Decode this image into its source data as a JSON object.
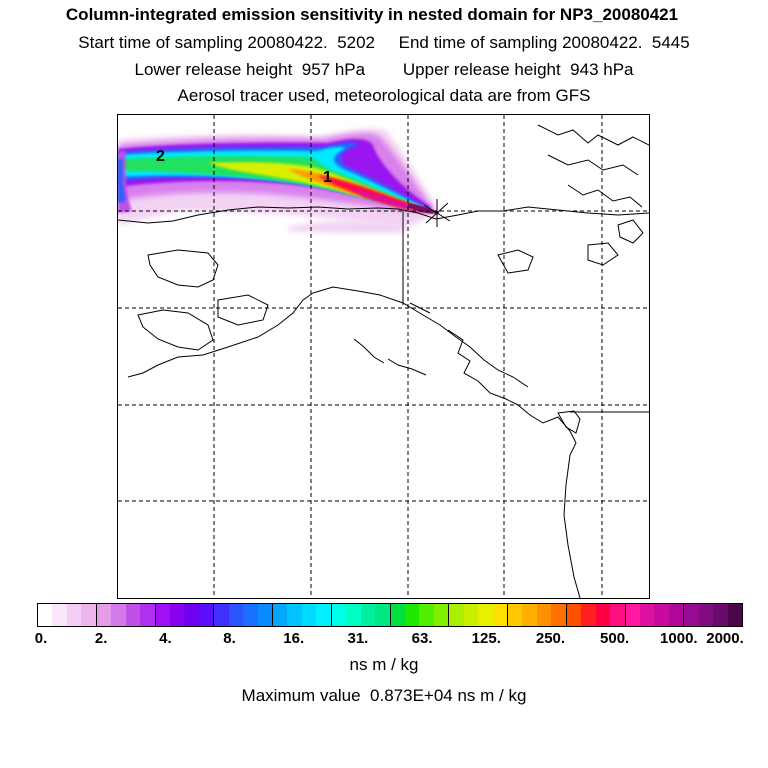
{
  "header": {
    "title": "Column-integrated emission sensitivity in nested domain for NP3_20080421",
    "line1": "Start time of sampling 20080422.  5202     End time of sampling 20080422.  5445",
    "line2": "Lower release height  957 hPa        Upper release height  943 hPa",
    "line3": "Aerosol tracer used, meteorological data are from GFS"
  },
  "map": {
    "labels": [
      {
        "name": "plume-label-2",
        "text": "2"
      },
      {
        "name": "plume-label-1",
        "text": "1"
      }
    ],
    "colors": {
      "coastline": "#000000",
      "gridline": "#000000"
    }
  },
  "colorbar": {
    "tick_labels": [
      "0.",
      "2.",
      "4.",
      "8.",
      "16.",
      "31.",
      "63.",
      "125.",
      "250.",
      "500.",
      "1000.",
      "2000."
    ],
    "units": "ns m / kg",
    "colors": [
      "#ffffff",
      "#fae6fa",
      "#f4cdf4",
      "#eeb4ee",
      "#e69ce8",
      "#d27ae8",
      "#c050e8",
      "#b030f0",
      "#a010f4",
      "#8a00f2",
      "#7000f0",
      "#5a10f8",
      "#4030ff",
      "#2a55ff",
      "#1a70ff",
      "#0a8cff",
      "#00a8ff",
      "#00c4ff",
      "#00dcff",
      "#00f0ff",
      "#00ffe8",
      "#00ffc4",
      "#00f0a0",
      "#00e880",
      "#00e040",
      "#20e800",
      "#50f000",
      "#80f000",
      "#a8f000",
      "#c8f000",
      "#e8f000",
      "#ffe000",
      "#ffc800",
      "#ffb000",
      "#ff9000",
      "#ff7000",
      "#ff5000",
      "#ff2020",
      "#ff0040",
      "#ff1080",
      "#ff1aa0",
      "#e010a0",
      "#c80aa0",
      "#b0089a",
      "#980a90",
      "#800c80",
      "#6a0a6a",
      "#4a0848"
    ]
  },
  "max_value_text": "Maximum value  0.873E+04 ns m / kg"
}
